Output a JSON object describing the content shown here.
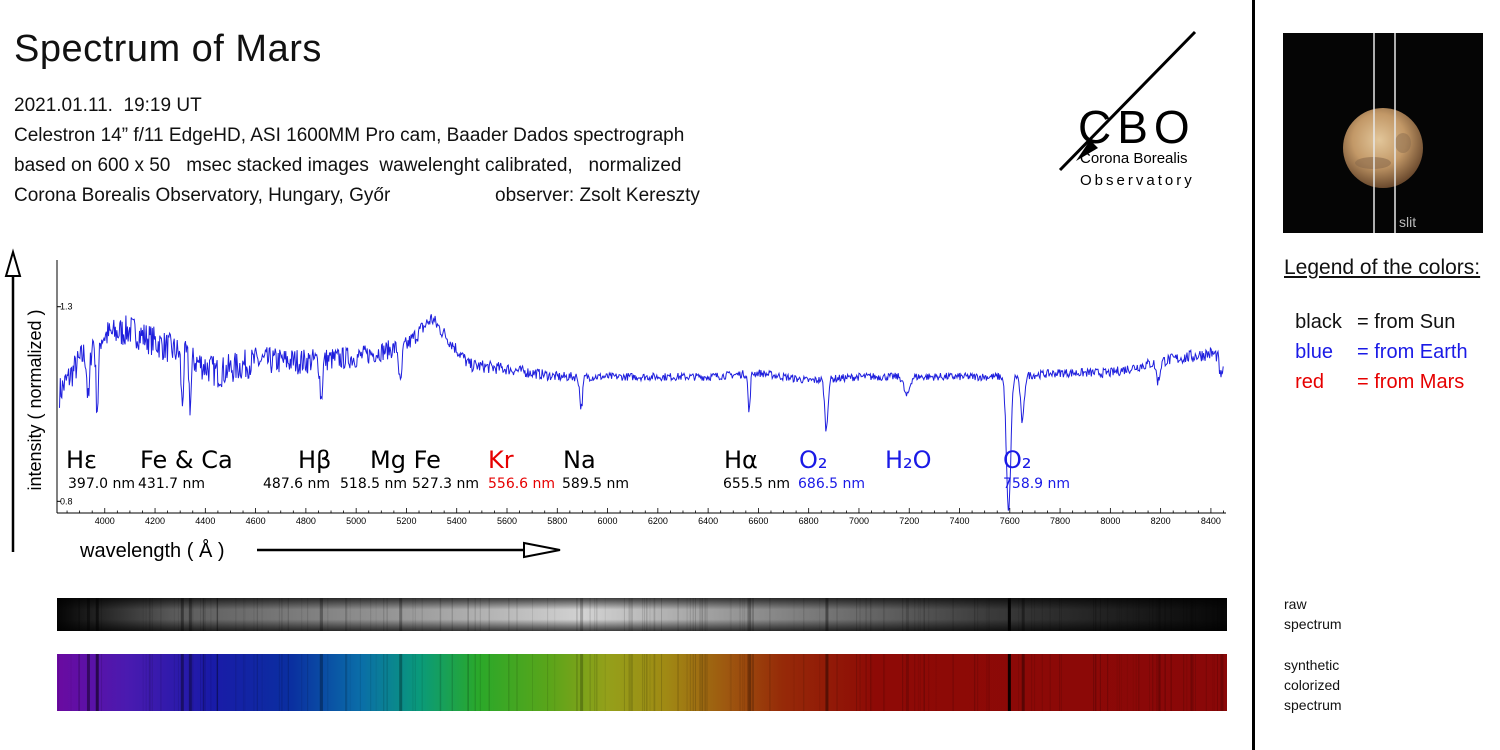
{
  "header": {
    "title": "Spectrum of Mars",
    "date": "2021.01.11.  19:19 UT",
    "line1": "Celestron 14” f/11 EdgeHD, ASI 1600MM Pro cam, Baader Dados spectrograph",
    "line2": "based on 600 x 50   msec stacked images  wawelenght calibrated,   normalized",
    "line3": "Corona Borealis Observatory, Hungary, Győr",
    "observer": "observer: Zsolt Kereszty"
  },
  "logo": {
    "letters": "CBO",
    "name": "Corona Borealis",
    "sub": "Observatory"
  },
  "mars_image": {
    "slit_label": "slit"
  },
  "legend": {
    "title": "Legend of the colors:",
    "items": [
      {
        "key": "black",
        "desc": "= from Sun",
        "color": "#000000"
      },
      {
        "key": "blue",
        "desc": "= from Earth",
        "color": "#1a1ae6"
      },
      {
        "key": "red",
        "desc": "= from Mars",
        "color": "#e60000"
      }
    ]
  },
  "strip_labels": {
    "raw": "raw spectrum",
    "synthetic": "synthetic colorized spectrum"
  },
  "colors": {
    "line": "#1f1fdd",
    "earth": "#1a1ae6",
    "mars": "#e60000",
    "sun": "#000000"
  },
  "chart_data": {
    "type": "line",
    "xlabel": "wavelength  ( Å )",
    "ylabel": "intensity ( normalized )",
    "xlim": [
      3810,
      8460
    ],
    "ylim": [
      0.77,
      1.42
    ],
    "x_ticks": [
      4000,
      4200,
      4400,
      4600,
      4800,
      5000,
      5200,
      5400,
      5600,
      5800,
      6000,
      6200,
      6400,
      6600,
      6800,
      7000,
      7200,
      7400,
      7600,
      7800,
      8000,
      8200,
      8400
    ],
    "y_ticks": [
      "0.8",
      "1.3"
    ],
    "series": [
      {
        "continuum": [
          [
            3820,
            1.08
          ],
          [
            3960,
            1.22
          ],
          [
            4100,
            1.24
          ],
          [
            4300,
            1.18
          ],
          [
            4450,
            1.13
          ],
          [
            4600,
            1.16
          ],
          [
            4800,
            1.16
          ],
          [
            5000,
            1.17
          ],
          [
            5200,
            1.2
          ],
          [
            5300,
            1.27
          ],
          [
            5450,
            1.15
          ],
          [
            5600,
            1.14
          ],
          [
            5800,
            1.12
          ],
          [
            6000,
            1.12
          ],
          [
            6200,
            1.12
          ],
          [
            6400,
            1.12
          ],
          [
            6600,
            1.13
          ],
          [
            6800,
            1.11
          ],
          [
            7000,
            1.12
          ],
          [
            7200,
            1.12
          ],
          [
            7400,
            1.12
          ],
          [
            7600,
            1.12
          ],
          [
            7800,
            1.13
          ],
          [
            8000,
            1.13
          ],
          [
            8200,
            1.16
          ],
          [
            8400,
            1.18
          ],
          [
            8450,
            1.17
          ]
        ],
        "absorption_lines": [
          {
            "x": 3935,
            "depth": 0.14,
            "width": 8
          },
          {
            "x": 3970,
            "depth": 0.18,
            "width": 8
          },
          {
            "x": 4308,
            "depth": 0.13,
            "width": 6
          },
          {
            "x": 4340,
            "depth": 0.12,
            "width": 6
          },
          {
            "x": 4861,
            "depth": 0.1,
            "width": 7
          },
          {
            "x": 5176,
            "depth": 0.1,
            "width": 8
          },
          {
            "x": 5895,
            "depth": 0.08,
            "width": 8
          },
          {
            "x": 6563,
            "depth": 0.1,
            "width": 6
          },
          {
            "x": 6870,
            "depth": 0.13,
            "width": 9
          },
          {
            "x": 7190,
            "depth": 0.05,
            "width": 15
          },
          {
            "x": 7595,
            "depth": 0.35,
            "width": 12
          },
          {
            "x": 7650,
            "depth": 0.12,
            "width": 10
          },
          {
            "x": 8190,
            "depth": 0.05,
            "width": 10
          },
          {
            "x": 8440,
            "depth": 0.06,
            "width": 8
          }
        ],
        "noise_rms": [
          [
            3820,
            0.04
          ],
          [
            4500,
            0.04
          ],
          [
            5400,
            0.018
          ],
          [
            6000,
            0.01
          ],
          [
            7600,
            0.01
          ],
          [
            8000,
            0.012
          ],
          [
            8450,
            0.018
          ]
        ]
      }
    ],
    "annotations": [
      {
        "species": "Hε",
        "species_color": "#000000",
        "values": [
          {
            "text": "397.0 nm",
            "color": "#000000"
          }
        ]
      },
      {
        "species": "Fe & Ca",
        "species_color": "#000000",
        "values": [
          {
            "text": "431.7 nm",
            "color": "#000000"
          }
        ]
      },
      {
        "species": "Hβ",
        "species_color": "#000000",
        "values": [
          {
            "text": "487.6 nm",
            "color": "#000000"
          }
        ]
      },
      {
        "species": "Mg Fe",
        "species_color": "#000000",
        "values": [
          {
            "text": "518.5 nm",
            "color": "#000000"
          },
          {
            "text": "527.3 nm",
            "color": "#000000"
          }
        ]
      },
      {
        "species": "Kr",
        "species_color": "#e60000",
        "values": [
          {
            "text": "556.6 nm",
            "color": "#e60000"
          }
        ]
      },
      {
        "species": "Na",
        "species_color": "#000000",
        "values": [
          {
            "text": "589.5 nm",
            "color": "#000000"
          }
        ]
      },
      {
        "species": "Hα",
        "species_color": "#000000",
        "values": [
          {
            "text": "655.5 nm",
            "color": "#000000"
          }
        ]
      },
      {
        "species": "O₂",
        "species_color": "#1a1ae6",
        "values": [
          {
            "text": "686.5 nm",
            "color": "#1a1ae6"
          }
        ]
      },
      {
        "species": "H₂O",
        "species_color": "#1a1ae6",
        "values": []
      },
      {
        "species": "O₂",
        "species_color": "#1a1ae6",
        "values": [
          {
            "text": "758.9 nm",
            "color": "#1a1ae6"
          }
        ]
      }
    ]
  }
}
